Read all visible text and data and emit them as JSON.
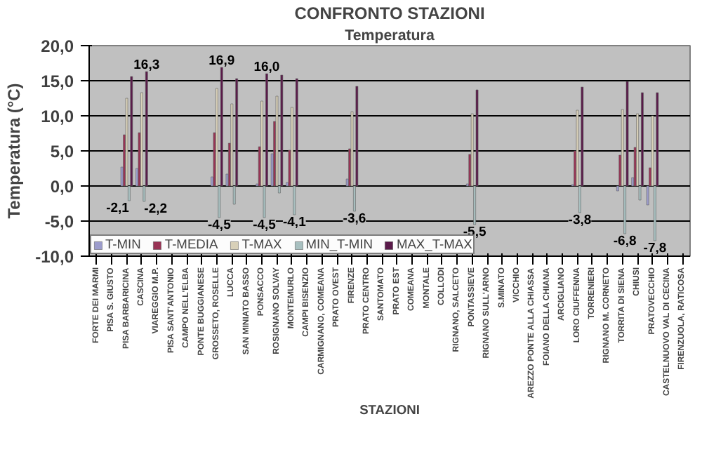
{
  "chart_data": {
    "type": "bar",
    "title": "CONFRONTO STAZIONI",
    "subtitle": "Temperatura",
    "xlabel": "STAZIONI",
    "ylabel": "Temperatura (°C)",
    "categories": [
      "FORTE DEI MARMI",
      "PISA S. GIUSTO",
      "PISA BARBARICINA",
      "CASCINA",
      "VIAREGGIO M.P.",
      "PISA SANT'ANTONIO",
      "CAMPO NELL'ELBA",
      "PONTE BUGGIANESE",
      "GROSSETO, ROSELLE",
      "LUCCA",
      "SAN MINIATO BASSO",
      "PONSACCO",
      "ROSIGNANO SOLVAY",
      "MONTEMURLO",
      "CAMPI BISENZIO",
      "CARMIGNANO, COMEANA",
      "PRATO OVEST",
      "FIRENZE",
      "PRATO CENTRO",
      "SANTOMATO",
      "PRATO EST",
      "COMEANA",
      "MONTALE",
      "COLLODI",
      "RIGNANO, SALCETO",
      "PONTASSIEVE",
      "RIGNANO SULL'ARNO",
      "S.MINATO",
      "VICCHIO",
      "AREZZO PONTE ALLA CHIASSA",
      "FOIANO DELLA CHIANA",
      "ARCIGLIANO",
      "LORO CIUFFENNA",
      "TORRENIERI",
      "RIGNANO M. CORNETO",
      "TORRITA DI SIENA",
      "CHIUSI",
      "PRATOVECCHIO",
      "CASTELNUOVO VAL DI CECINA",
      "FIRENZUOLA, RATICOSA"
    ],
    "series": [
      {
        "name": "T-MIN",
        "color": "#9c9ccc",
        "values": [
          null,
          null,
          2.7,
          2.5,
          null,
          null,
          null,
          null,
          1.3,
          1.7,
          null,
          0.3,
          4.6,
          0.5,
          null,
          null,
          null,
          1.0,
          null,
          null,
          null,
          null,
          null,
          null,
          null,
          0.3,
          null,
          null,
          null,
          null,
          null,
          null,
          0.2,
          null,
          null,
          -0.7,
          1.2,
          -2.7,
          null,
          null
        ]
      },
      {
        "name": "T-MEDIA",
        "color": "#993355",
        "values": [
          null,
          null,
          7.3,
          7.6,
          null,
          null,
          null,
          null,
          7.6,
          6.1,
          null,
          5.6,
          9.2,
          5.1,
          null,
          null,
          null,
          5.3,
          null,
          null,
          null,
          null,
          null,
          null,
          null,
          4.5,
          null,
          null,
          null,
          null,
          null,
          null,
          5.0,
          null,
          null,
          4.4,
          5.5,
          2.6,
          null,
          null
        ]
      },
      {
        "name": "T-MAX",
        "color": "#d8d0b8",
        "values": [
          null,
          null,
          12.5,
          13.3,
          null,
          null,
          null,
          null,
          13.9,
          11.7,
          null,
          12.1,
          12.8,
          11.2,
          null,
          null,
          null,
          10.6,
          null,
          null,
          null,
          null,
          null,
          null,
          null,
          10.3,
          null,
          null,
          null,
          null,
          null,
          null,
          10.8,
          null,
          null,
          10.9,
          10.3,
          10.0,
          null,
          null
        ]
      },
      {
        "name": "MIN_T-MIN",
        "color": "#a8c0c0",
        "values": [
          null,
          null,
          -2.1,
          -2.2,
          null,
          null,
          null,
          null,
          -4.5,
          -2.6,
          null,
          -4.5,
          -1.0,
          -4.1,
          null,
          null,
          null,
          -3.6,
          null,
          null,
          null,
          null,
          null,
          null,
          null,
          -5.5,
          null,
          null,
          null,
          null,
          null,
          null,
          -3.8,
          null,
          null,
          -6.8,
          -2.0,
          -7.8,
          null,
          null
        ],
        "value_labels": [
          null,
          null,
          "-2,1",
          "-2,2",
          null,
          null,
          null,
          null,
          "-4,5",
          null,
          null,
          "-4,5",
          null,
          "-4,1",
          null,
          null,
          null,
          "-3,6",
          null,
          null,
          null,
          null,
          null,
          null,
          null,
          "-5,5",
          null,
          null,
          null,
          null,
          null,
          null,
          "-3,8",
          null,
          null,
          "-6,8",
          null,
          "-7,8",
          null,
          null
        ]
      },
      {
        "name": "MAX_T-MAX",
        "color": "#5a1a4a",
        "values": [
          null,
          null,
          15.6,
          16.3,
          null,
          null,
          null,
          null,
          16.9,
          15.3,
          null,
          16.0,
          15.8,
          15.3,
          null,
          null,
          null,
          14.2,
          null,
          null,
          null,
          null,
          null,
          null,
          null,
          13.7,
          null,
          null,
          null,
          null,
          null,
          null,
          14.1,
          null,
          null,
          14.9,
          13.3,
          13.3,
          null,
          null
        ],
        "value_labels": [
          null,
          null,
          null,
          "16,3",
          null,
          null,
          null,
          null,
          "16,9",
          null,
          null,
          "16,0",
          null,
          null,
          null,
          null,
          null,
          null,
          null,
          null,
          null,
          null,
          null,
          null,
          null,
          null,
          null,
          null,
          null,
          null,
          null,
          null,
          null,
          null,
          null,
          null,
          null,
          null,
          null,
          null
        ]
      }
    ],
    "ylim": [
      -10,
      20
    ],
    "yticks": [
      {
        "value": -10,
        "label": "-10,0"
      },
      {
        "value": -5,
        "label": "-5,0"
      },
      {
        "value": 0,
        "label": "0,0"
      },
      {
        "value": 5,
        "label": "5,0"
      },
      {
        "value": 10,
        "label": "10,0"
      },
      {
        "value": 15,
        "label": "15,0"
      },
      {
        "value": 20,
        "label": "20,0"
      }
    ],
    "grid": "y",
    "legend": "bottom left"
  }
}
